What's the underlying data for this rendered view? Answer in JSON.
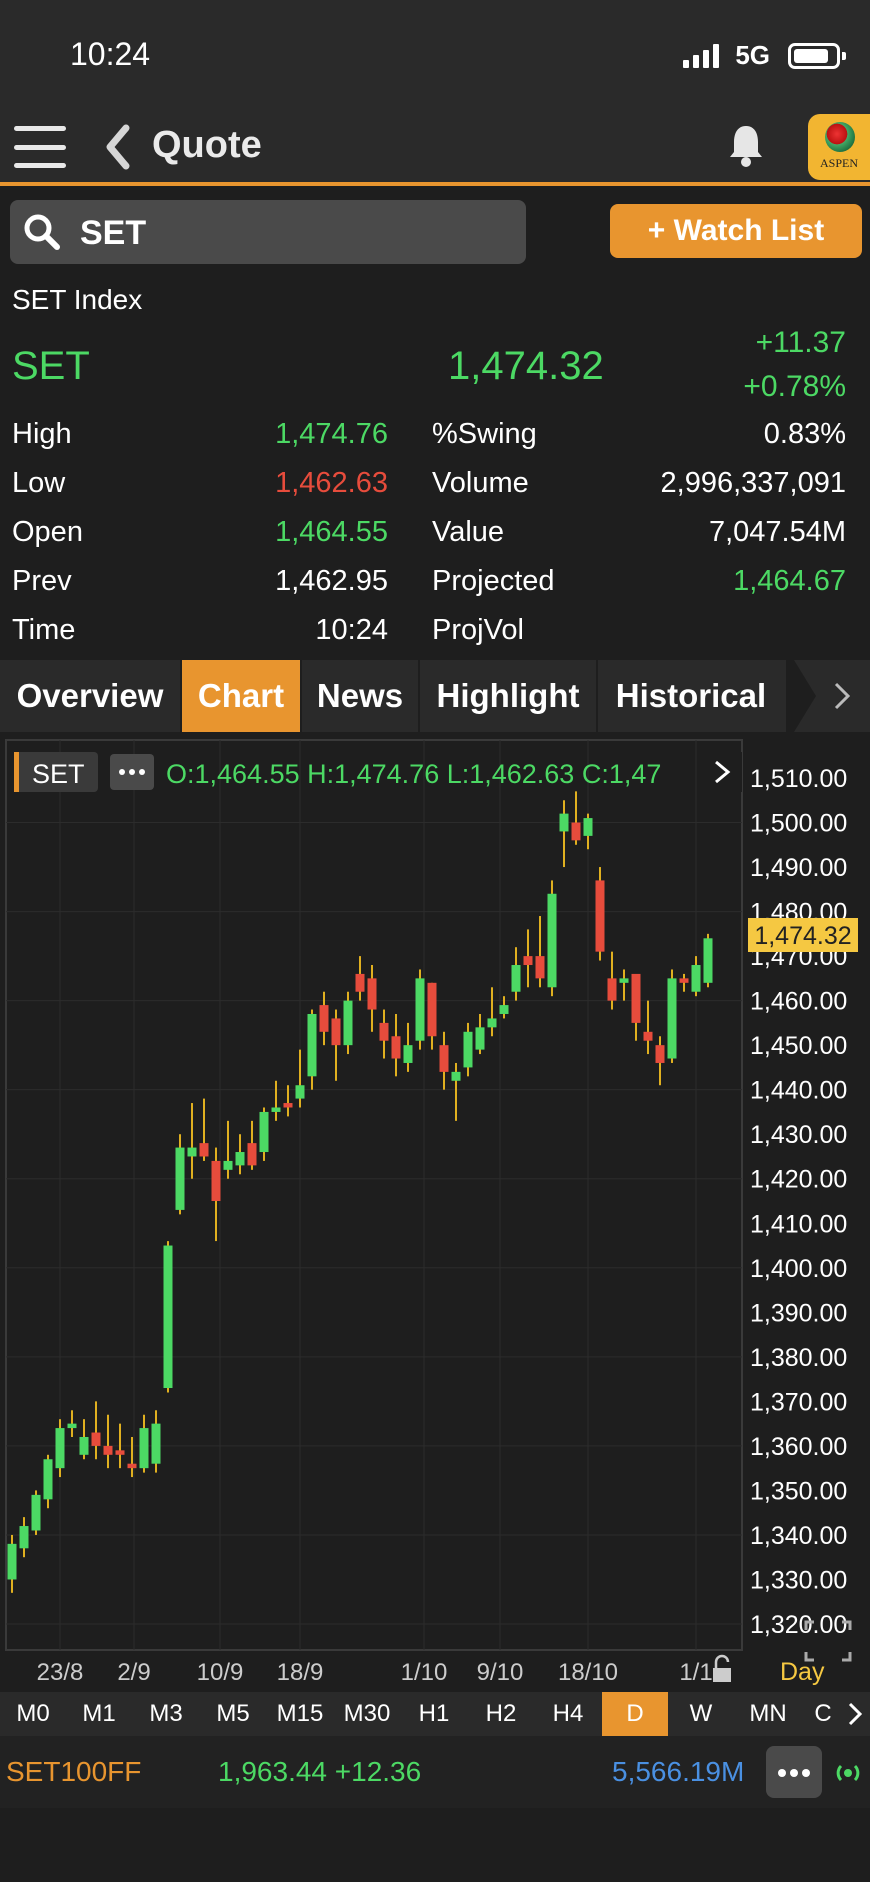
{
  "status": {
    "time": "10:24",
    "network": "5G"
  },
  "nav": {
    "title": "Quote",
    "logo_text": "ASPEN"
  },
  "search": {
    "value": "SET"
  },
  "watch_list": {
    "label": "+ Watch List"
  },
  "quote": {
    "name": "SET Index",
    "symbol": "SET",
    "last": "1,474.32",
    "change": "+11.37",
    "change_pct": "+0.78%"
  },
  "stats": {
    "high_label": "High",
    "high": "1,474.76",
    "low_label": "Low",
    "low": "1,462.63",
    "open_label": "Open",
    "open": "1,464.55",
    "prev_label": "Prev",
    "prev": "1,462.95",
    "time_label": "Time",
    "time": "10:24",
    "swing_label": "%Swing",
    "swing": "0.83%",
    "volume_label": "Volume",
    "volume": "2,996,337,091",
    "value_label": "Value",
    "value": "7,047.54M",
    "projected_label": "Projected",
    "projected": "1,464.67",
    "projvol_label": "ProjVol"
  },
  "tabs": [
    {
      "label": "Overview",
      "active": false
    },
    {
      "label": "Chart",
      "active": true
    },
    {
      "label": "News",
      "active": false
    },
    {
      "label": "Highlight",
      "active": false
    },
    {
      "label": "Historical",
      "active": false
    }
  ],
  "chart_header": {
    "symbol": "SET",
    "ohlc": "O:1,464.55  H:1,474.76  L:1,462.63  C:1,47",
    "last_tag": "1,474.32",
    "period_label": "Day"
  },
  "chart_data": {
    "type": "candlestick",
    "y_ticks": [
      "1,510.00",
      "1,500.00",
      "1,490.00",
      "1,480.00",
      "1,470.00",
      "1,460.00",
      "1,450.00",
      "1,440.00",
      "1,430.00",
      "1,420.00",
      "1,410.00",
      "1,400.00",
      "1,390.00",
      "1,380.00",
      "1,370.00",
      "1,360.00",
      "1,350.00",
      "1,340.00",
      "1,330.00",
      "1,320.00"
    ],
    "x_ticks": [
      "23/8",
      "2/9",
      "10/9",
      "18/9",
      "1/10",
      "9/10",
      "18/10",
      "1/1"
    ],
    "ylim": [
      1320,
      1510
    ],
    "candles": [
      [
        1330,
        1338,
        1327,
        1340
      ],
      [
        1337,
        1342,
        1335,
        1344
      ],
      [
        1341,
        1349,
        1340,
        1350
      ],
      [
        1348,
        1357,
        1346,
        1358
      ],
      [
        1355,
        1364,
        1353,
        1366
      ],
      [
        1364,
        1365,
        1362,
        1368
      ],
      [
        1358,
        1362,
        1357,
        1366
      ],
      [
        1363,
        1360,
        1357,
        1370
      ],
      [
        1360,
        1358,
        1355,
        1367
      ],
      [
        1359,
        1358,
        1355,
        1365
      ],
      [
        1356,
        1355,
        1353,
        1362
      ],
      [
        1355,
        1364,
        1354,
        1367
      ],
      [
        1356,
        1365,
        1354,
        1368
      ],
      [
        1373,
        1405,
        1372,
        1406
      ],
      [
        1413,
        1427,
        1412,
        1430
      ],
      [
        1425,
        1427,
        1420,
        1437
      ],
      [
        1428,
        1425,
        1424,
        1438
      ],
      [
        1424,
        1415,
        1406,
        1427
      ],
      [
        1422,
        1424,
        1420,
        1433
      ],
      [
        1423,
        1426,
        1421,
        1430
      ],
      [
        1428,
        1423,
        1422,
        1433
      ],
      [
        1426,
        1435,
        1424,
        1436
      ],
      [
        1435,
        1436,
        1433,
        1442
      ],
      [
        1437,
        1436,
        1434,
        1441
      ],
      [
        1438,
        1441,
        1436,
        1449
      ],
      [
        1443,
        1457,
        1440,
        1458
      ],
      [
        1459,
        1453,
        1450,
        1462
      ],
      [
        1456,
        1450,
        1442,
        1458
      ],
      [
        1450,
        1460,
        1448,
        1462
      ],
      [
        1466,
        1462,
        1460,
        1470
      ],
      [
        1465,
        1458,
        1453,
        1468
      ],
      [
        1455,
        1451,
        1447,
        1458
      ],
      [
        1452,
        1447,
        1443,
        1457
      ],
      [
        1446,
        1450,
        1444,
        1455
      ],
      [
        1451,
        1465,
        1449,
        1467
      ],
      [
        1464,
        1452,
        1449,
        1464
      ],
      [
        1450,
        1444,
        1440,
        1453
      ],
      [
        1442,
        1444,
        1433,
        1446
      ],
      [
        1445,
        1453,
        1443,
        1455
      ],
      [
        1449,
        1454,
        1448,
        1457
      ],
      [
        1454,
        1456,
        1452,
        1463
      ],
      [
        1457,
        1459,
        1456,
        1461
      ],
      [
        1462,
        1468,
        1460,
        1472
      ],
      [
        1470,
        1468,
        1463,
        1476
      ],
      [
        1470,
        1465,
        1463,
        1479
      ],
      [
        1463,
        1484,
        1461,
        1487
      ],
      [
        1498,
        1502,
        1490,
        1505
      ],
      [
        1500,
        1496,
        1495,
        1507
      ],
      [
        1497,
        1501,
        1494,
        1502
      ],
      [
        1487,
        1471,
        1469,
        1490
      ],
      [
        1465,
        1460,
        1458,
        1471
      ],
      [
        1464,
        1465,
        1460,
        1467
      ],
      [
        1466,
        1455,
        1451,
        1465
      ],
      [
        1453,
        1451,
        1448,
        1460
      ],
      [
        1450,
        1446,
        1441,
        1452
      ],
      [
        1447,
        1465,
        1446,
        1467
      ],
      [
        1465,
        1464,
        1462,
        1466
      ],
      [
        1462,
        1468,
        1461,
        1470
      ],
      [
        1464,
        1474,
        1463,
        1475
      ]
    ]
  },
  "timeframes": [
    {
      "label": "M0",
      "active": false
    },
    {
      "label": "M1",
      "active": false
    },
    {
      "label": "M3",
      "active": false
    },
    {
      "label": "M5",
      "active": false
    },
    {
      "label": "M15",
      "active": false
    },
    {
      "label": "M30",
      "active": false
    },
    {
      "label": "H1",
      "active": false
    },
    {
      "label": "H2",
      "active": false
    },
    {
      "label": "H4",
      "active": false
    },
    {
      "label": "D",
      "active": true
    },
    {
      "label": "W",
      "active": false
    },
    {
      "label": "MN",
      "active": false
    },
    {
      "label": "C",
      "active": false
    }
  ],
  "ticker": {
    "name": "SET100FF",
    "value": "1,963.44 +12.36",
    "volume": "5,566.19M"
  },
  "colors": {
    "accent": "#e8952f",
    "up": "#4cd964",
    "down": "#e74c3c",
    "volume": "#4a90e2"
  }
}
